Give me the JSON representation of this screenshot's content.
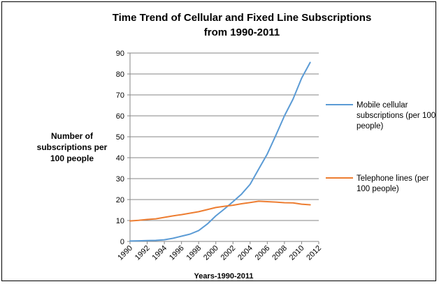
{
  "chart_data": {
    "type": "line",
    "title_lines": [
      "Time Trend of Cellular and Fixed Line Subscriptions",
      "from 1990-2011"
    ],
    "xlabel": "Years-1990-2011",
    "ylabel_lines": [
      "Number of",
      "subscriptions per",
      "100 people"
    ],
    "xlim": [
      1990,
      2012
    ],
    "ylim": [
      0,
      90
    ],
    "x_ticks": [
      1990,
      1992,
      1994,
      1996,
      1998,
      2000,
      2002,
      2004,
      2006,
      2008,
      2010,
      2012
    ],
    "y_ticks": [
      0,
      10,
      20,
      30,
      40,
      50,
      60,
      70,
      80,
      90
    ],
    "x": [
      1990,
      1991,
      1992,
      1993,
      1994,
      1995,
      1996,
      1997,
      1998,
      1999,
      2000,
      2001,
      2002,
      2003,
      2004,
      2005,
      2006,
      2007,
      2008,
      2009,
      2010,
      2011
    ],
    "series": [
      {
        "name": "Mobile cellular subscriptions (per 100 people)",
        "legend_lines": [
          "Mobile cellular",
          "subscriptions (per 100",
          "people)"
        ],
        "color": "#5b9bd5",
        "values": [
          0.2,
          0.3,
          0.4,
          0.5,
          0.8,
          1.5,
          2.5,
          3.5,
          5.2,
          8.3,
          12.2,
          15.5,
          19.0,
          22.6,
          27.3,
          34.6,
          41.8,
          50.7,
          60.0,
          68.0,
          78.0,
          85.5
        ]
      },
      {
        "name": "Telephone lines (per 100 people)",
        "legend_lines": [
          "Telephone lines (per",
          "100 people)"
        ],
        "color": "#ed7d31",
        "values": [
          9.8,
          10.1,
          10.5,
          10.8,
          11.5,
          12.2,
          12.8,
          13.5,
          14.2,
          15.2,
          16.2,
          16.8,
          17.3,
          18.0,
          18.6,
          19.2,
          19.0,
          18.8,
          18.5,
          18.4,
          17.8,
          17.5
        ]
      }
    ]
  }
}
